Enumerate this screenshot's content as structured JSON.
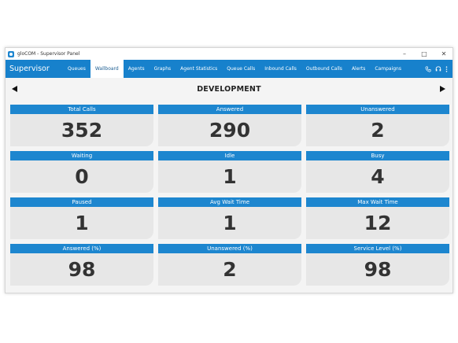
{
  "window": {
    "title": "gloCOM - Supervisor Panel",
    "controls": [
      "–",
      "□",
      "✕"
    ]
  },
  "navbar": {
    "brand": "Supervisor",
    "tabs": [
      {
        "label": "Queues",
        "active": false
      },
      {
        "label": "Wallboard",
        "active": true
      },
      {
        "label": "Agents",
        "active": false
      },
      {
        "label": "Graphs",
        "active": false
      },
      {
        "label": "Agent Statistics",
        "active": false
      },
      {
        "label": "Queue Calls",
        "active": false
      },
      {
        "label": "Inbound Calls",
        "active": false
      },
      {
        "label": "Outbound Calls",
        "active": false
      },
      {
        "label": "Alerts",
        "active": false
      },
      {
        "label": "Campaigns",
        "active": false
      }
    ],
    "icons": [
      "phone-icon",
      "headset-icon",
      "more-menu-icon"
    ]
  },
  "wallboard": {
    "department": "DEVELOPMENT",
    "tiles": [
      {
        "label": "Total Calls",
        "value": "352"
      },
      {
        "label": "Answered",
        "value": "290"
      },
      {
        "label": "Unanswered",
        "value": "2"
      },
      {
        "label": "Waiting",
        "value": "0"
      },
      {
        "label": "Idle",
        "value": "1"
      },
      {
        "label": "Busy",
        "value": "4"
      },
      {
        "label": "Paused",
        "value": "1"
      },
      {
        "label": "Avg Wait Time",
        "value": "1"
      },
      {
        "label": "Max Wait Time",
        "value": "12"
      },
      {
        "label": "Answered (%)",
        "value": "98"
      },
      {
        "label": "Unanswered (%)",
        "value": "2"
      },
      {
        "label": "Service Level (%)",
        "value": "98"
      }
    ]
  },
  "colors": {
    "accent": "#1781cc",
    "tile_header": "#1d86cf",
    "tile_body": "#e7e7e7"
  }
}
